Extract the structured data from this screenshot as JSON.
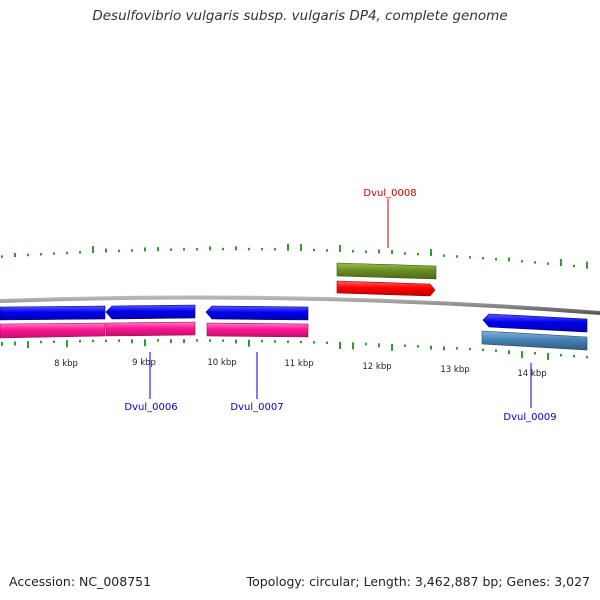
{
  "title": "Desulfovibrio vulgaris subsp. vulgaris DP4, complete genome",
  "footer": {
    "accession": "Accession: NC_008751",
    "summary": "Topology: circular; Length: 3,462,887 bp; Genes: 3,027"
  },
  "ticks": [
    "8 kbp",
    "9 kbp",
    "10 kbp",
    "11 kbp",
    "12 kbp",
    "13 kbp",
    "14 kbp"
  ],
  "genes": [
    {
      "id": "Dvul_0006",
      "color": "#0000cc"
    },
    {
      "id": "Dvul_0007",
      "color": "#0000cc"
    },
    {
      "id": "Dvul_0008",
      "color": "#cc0000"
    },
    {
      "id": "Dvul_0009",
      "color": "#0000cc"
    }
  ],
  "colors": {
    "backbone": "#8c8c8c",
    "cds_forward": "#ff0000",
    "cds_reverse": "#0000ff",
    "gene_reverse": "#ff1493",
    "gene_forward": "#6b8e23",
    "gene_reverse_alt": "#4682b4",
    "gc_ticks": "#008000"
  }
}
